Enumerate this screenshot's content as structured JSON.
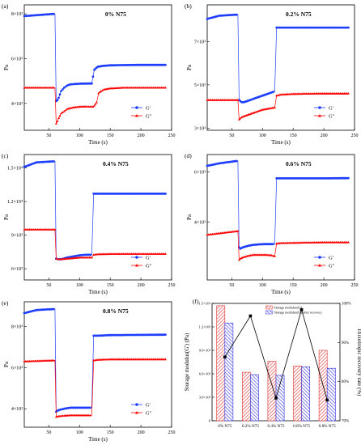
{
  "figure": {
    "colors": {
      "gp": "#1f3fff",
      "gpp": "#ff0000",
      "hatch_red": "#e03030",
      "hatch_blue": "#3030e0"
    }
  },
  "chart_data": [
    {
      "type": "line",
      "panel_label": "(a)",
      "title": "0% N75",
      "xlabel": "Time (s)",
      "ylabel": "Pa",
      "xlim": [
        10,
        250
      ],
      "ylim": [
        2800,
        8400
      ],
      "xticks": [
        50,
        100,
        150,
        200,
        250
      ],
      "yticks": [
        {
          "v": 8000,
          "l": "8×10³"
        },
        {
          "v": 6000,
          "l": "6×10³"
        },
        {
          "v": 4000,
          "l": "4×10³"
        }
      ],
      "legend": {
        "position": "bottom-right",
        "entries": [
          "G'",
          "G\""
        ]
      },
      "series": [
        {
          "name": "G'",
          "color": "#1f3fff",
          "marker": "circle",
          "x": [
            10,
            60,
            62,
            64,
            66,
            70,
            75,
            80,
            85,
            90,
            95,
            100,
            110,
            120,
            124,
            128,
            130,
            140,
            150,
            170,
            200,
            240
          ],
          "y": [
            7900,
            8000,
            4100,
            4150,
            4250,
            4550,
            4700,
            4800,
            4850,
            4860,
            4870,
            4880,
            4885,
            4890,
            5500,
            5600,
            5640,
            5680,
            5700,
            5710,
            5720,
            5720
          ]
        },
        {
          "name": "G\"",
          "color": "#ff0000",
          "marker": "triangle",
          "x": [
            10,
            60,
            62,
            64,
            66,
            70,
            75,
            80,
            90,
            100,
            110,
            122,
            124,
            128,
            131,
            135,
            140,
            150,
            170,
            200,
            240
          ],
          "y": [
            4700,
            4700,
            3100,
            3200,
            3350,
            3550,
            3650,
            3750,
            3820,
            3850,
            3860,
            3850,
            3900,
            4050,
            4450,
            4550,
            4620,
            4670,
            4700,
            4700,
            4700
          ]
        }
      ]
    },
    {
      "type": "line",
      "panel_label": "(b)",
      "title": "0.2% N75",
      "xlabel": "Time (s)",
      "ylabel": "Pa",
      "xlim": [
        10,
        250
      ],
      "ylim": [
        2900,
        8700
      ],
      "xticks": [
        50,
        100,
        150,
        200,
        250
      ],
      "yticks": [
        {
          "v": 7000,
          "l": "7×10³"
        },
        {
          "v": 5000,
          "l": "5×10³"
        },
        {
          "v": 3000,
          "l": "3×10³"
        }
      ],
      "legend": {
        "position": "bottom-right",
        "entries": [
          "G'",
          "G\""
        ]
      },
      "series": [
        {
          "name": "G'",
          "color": "#1f3fff",
          "marker": "circle",
          "x": [
            10,
            30,
            60,
            62,
            64,
            66,
            70,
            80,
            90,
            100,
            110,
            120,
            123,
            130,
            150,
            200,
            240
          ],
          "y": [
            8050,
            8200,
            8250,
            4300,
            4250,
            4200,
            4200,
            4300,
            4400,
            4500,
            4600,
            4700,
            7650,
            7650,
            7650,
            7650,
            7650
          ]
        },
        {
          "name": "G\"",
          "color": "#ff0000",
          "marker": "triangle",
          "x": [
            10,
            60,
            62,
            64,
            66,
            70,
            80,
            90,
            100,
            110,
            120,
            123,
            130,
            150,
            200,
            240
          ],
          "y": [
            4300,
            4300,
            3400,
            3450,
            3500,
            3550,
            3650,
            3750,
            3850,
            3900,
            3950,
            4500,
            4550,
            4580,
            4600,
            4600
          ]
        }
      ]
    },
    {
      "type": "line",
      "panel_label": "(c)",
      "title": "0.4% N75",
      "xlabel": "Time (s)",
      "ylabel": "Pa",
      "xlim": [
        10,
        250
      ],
      "ylim": [
        5000,
        16200
      ],
      "xticks": [
        50,
        100,
        150,
        200,
        250
      ],
      "yticks": [
        {
          "v": 15000,
          "l": "1.5×10⁴"
        },
        {
          "v": 12000,
          "l": "1.2×10⁴"
        },
        {
          "v": 9000,
          "l": "9×10³"
        },
        {
          "v": 6000,
          "l": "6×10³"
        }
      ],
      "legend": {
        "position": "bottom-right",
        "entries": [
          "G'",
          "G\""
        ]
      },
      "series": [
        {
          "name": "G'",
          "color": "#1f3fff",
          "marker": "circle",
          "x": [
            10,
            30,
            60,
            62,
            65,
            70,
            80,
            90,
            100,
            110,
            120,
            123,
            130,
            150,
            200,
            240
          ],
          "y": [
            15100,
            15500,
            15600,
            6900,
            6850,
            6850,
            7000,
            7100,
            7200,
            7250,
            7250,
            12700,
            12700,
            12700,
            12700,
            12700
          ]
        },
        {
          "name": "G\"",
          "color": "#ff0000",
          "marker": "triangle",
          "x": [
            10,
            60,
            62,
            65,
            70,
            80,
            90,
            100,
            110,
            120,
            123,
            130,
            150,
            200,
            240
          ],
          "y": [
            9500,
            9500,
            6900,
            6850,
            6850,
            6900,
            6950,
            7000,
            7000,
            7000,
            7250,
            7300,
            7320,
            7330,
            7330
          ]
        }
      ]
    },
    {
      "type": "line",
      "panel_label": "(d)",
      "title": "0.6% N75",
      "xlabel": "Time (s)",
      "ylabel": "Pa",
      "xlim": [
        10,
        250
      ],
      "ylim": [
        1700,
        6700
      ],
      "xticks": [
        50,
        100,
        150,
        200,
        250
      ],
      "yticks": [
        {
          "v": 6000,
          "l": "6×10³"
        },
        {
          "v": 4000,
          "l": "4×10³"
        }
      ],
      "legend": {
        "position": "bottom-right",
        "entries": [
          "G'",
          "G\""
        ]
      },
      "series": [
        {
          "name": "G'",
          "color": "#1f3fff",
          "marker": "circle",
          "x": [
            10,
            30,
            60,
            62,
            64,
            68,
            75,
            85,
            95,
            105,
            115,
            120,
            123,
            130,
            150,
            200,
            240
          ],
          "y": [
            6250,
            6350,
            6450,
            3000,
            2950,
            3000,
            3050,
            3100,
            3120,
            3130,
            3130,
            3130,
            5750,
            5750,
            5750,
            5750,
            5760
          ]
        },
        {
          "name": "G\"",
          "color": "#ff0000",
          "marker": "triangle",
          "x": [
            10,
            60,
            62,
            64,
            68,
            75,
            85,
            95,
            105,
            115,
            120,
            123,
            130,
            150,
            200,
            240
          ],
          "y": [
            3500,
            3650,
            2500,
            2550,
            2600,
            2650,
            2700,
            2700,
            2700,
            2680,
            2650,
            3150,
            3170,
            3180,
            3200,
            3200
          ]
        }
      ]
    },
    {
      "type": "line",
      "panel_label": "(e)",
      "title": "0.8% N75",
      "xlabel": "Time (s)",
      "ylabel": "Pa",
      "xlim": [
        10,
        250
      ],
      "ylim": [
        3100,
        9200
      ],
      "xticks": [
        50,
        100,
        150,
        200,
        250
      ],
      "yticks": [
        {
          "v": 8000,
          "l": "8×10³"
        },
        {
          "v": 6000,
          "l": "6×10³"
        },
        {
          "v": 4000,
          "l": "4×10³"
        }
      ],
      "legend": {
        "position": "bottom-right",
        "entries": [
          "G'",
          "G\""
        ]
      },
      "series": [
        {
          "name": "G'",
          "color": "#1f3fff",
          "marker": "circle",
          "x": [
            10,
            30,
            60,
            62,
            64,
            68,
            75,
            85,
            95,
            105,
            115,
            120,
            123,
            130,
            150,
            200,
            240
          ],
          "y": [
            8650,
            8800,
            8850,
            3850,
            3900,
            3950,
            4000,
            4050,
            4050,
            4050,
            4050,
            4050,
            7550,
            7550,
            7580,
            7590,
            7600
          ]
        },
        {
          "name": "G\"",
          "color": "#ff0000",
          "marker": "triangle",
          "x": [
            10,
            60,
            62,
            64,
            68,
            75,
            85,
            95,
            105,
            115,
            120,
            123,
            130,
            150,
            200,
            240
          ],
          "y": [
            6300,
            6350,
            3600,
            3620,
            3640,
            3660,
            3680,
            3680,
            3680,
            3680,
            3680,
            6350,
            6380,
            6400,
            6400,
            6400
          ]
        }
      ]
    },
    {
      "type": "bar",
      "panel_label": "(f)",
      "title": "",
      "xlabel": "",
      "ylabel": "Storage modulus(G') (Pa)",
      "y2label": "Thixotropic recovery rate (%)",
      "categories": [
        "0% N75",
        "0.2% N75",
        "0.4% N75",
        "0.6% N75",
        "0.8% N75"
      ],
      "ylim": [
        0,
        15000
      ],
      "yticks": [
        {
          "v": 0,
          "l": "0"
        },
        {
          "v": 3000,
          "l": "3.0×10³"
        },
        {
          "v": 6000,
          "l": "6.0×10³"
        },
        {
          "v": 9000,
          "l": "9.0×10³"
        },
        {
          "v": 12000,
          "l": "1.2×10⁴"
        },
        {
          "v": 15000,
          "l": "1.5×10⁴"
        }
      ],
      "y2lim": [
        70,
        100
      ],
      "y2ticks": [
        {
          "v": 70,
          "l": "70%"
        },
        {
          "v": 80,
          "l": "80%"
        },
        {
          "v": 90,
          "l": "90%"
        },
        {
          "v": 100,
          "l": "100%"
        }
      ],
      "legend": {
        "position": "top-right",
        "entries": [
          "Storage modulus(G')",
          "Storage modulus(G') after recovery"
        ]
      },
      "series": [
        {
          "name": "Storage modulus(G')",
          "type": "bar",
          "color": "#e03030",
          "values": [
            14700,
            6200,
            7600,
            7000,
            9000
          ]
        },
        {
          "name": "Storage modulus(G') after recovery",
          "type": "bar",
          "color": "#3030e0",
          "values": [
            12500,
            5900,
            5800,
            6900,
            6700
          ]
        },
        {
          "type": "line",
          "axis": "y2",
          "color": "#000000",
          "marker": "square",
          "values": [
            86.3,
            96.8,
            75.8,
            98.4,
            75.3
          ]
        }
      ]
    }
  ]
}
